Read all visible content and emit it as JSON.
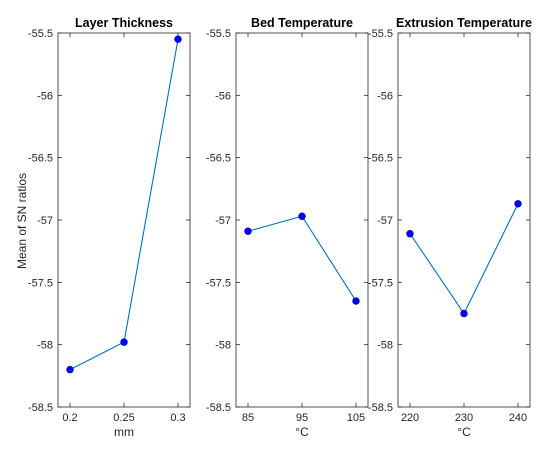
{
  "chart_data": {
    "type": "line",
    "ylabel": "Mean of SN ratios",
    "ylim": [
      -58.5,
      -55.5
    ],
    "yticks": [
      "-55.5",
      "-56",
      "-56.5",
      "-57",
      "-57.5",
      "-58",
      "-58.5"
    ],
    "yticks_values": [
      -55.5,
      -56,
      -56.5,
      -57,
      -57.5,
      -58,
      -58.5
    ],
    "line_color": "#0072BD",
    "marker_color": "#0000FF",
    "panels": [
      {
        "title": "Layer Thickness",
        "xlabel": "mm",
        "categories": [
          "0.2",
          "0.25",
          "0.3"
        ],
        "values": [
          -58.2,
          -57.98,
          -55.55
        ]
      },
      {
        "title": "Bed Temperature",
        "xlabel": "°C",
        "categories": [
          "85",
          "95",
          "105"
        ],
        "values": [
          -57.09,
          -56.97,
          -57.65
        ]
      },
      {
        "title": "Extrusion Temperature",
        "xlabel": "°C",
        "categories": [
          "220",
          "230",
          "240"
        ],
        "values": [
          -57.11,
          -57.75,
          -56.87
        ]
      }
    ]
  }
}
